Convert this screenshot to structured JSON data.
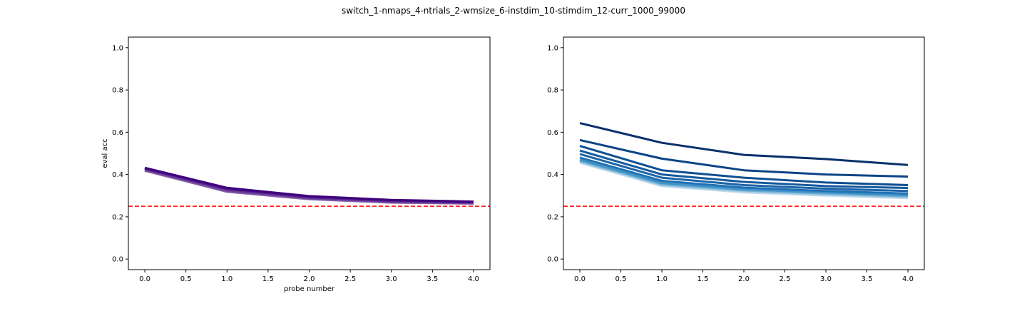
{
  "figure": {
    "suptitle": "switch_1-nmaps_4-ntrials_2-wmsize_6-instdim_10-stimdim_12-curr_1000_99000"
  },
  "chart_data": [
    {
      "type": "line",
      "xlabel": "probe number",
      "ylabel": "eval acc",
      "xlim": [
        -0.2,
        4.2
      ],
      "ylim": [
        -0.05,
        1.05
      ],
      "xticks": [
        0.0,
        0.5,
        1.0,
        1.5,
        2.0,
        2.5,
        3.0,
        3.5,
        4.0
      ],
      "xtick_labels": [
        "0.0",
        "0.5",
        "1.0",
        "1.5",
        "2.0",
        "2.5",
        "3.0",
        "3.5",
        "4.0"
      ],
      "yticks": [
        0.0,
        0.2,
        0.4,
        0.6,
        0.8,
        1.0
      ],
      "ytick_labels": [
        "0.0",
        "0.2",
        "0.4",
        "0.6",
        "0.8",
        "1.0"
      ],
      "grid": false,
      "chance_line": {
        "y": 0.25,
        "color": "#ff0000",
        "style": "dashed"
      },
      "x": [
        0,
        1,
        2,
        3,
        4
      ],
      "series": [
        {
          "values": [
            0.418,
            0.318,
            0.283,
            0.267,
            0.262
          ],
          "color": "#8c6bb1"
        },
        {
          "values": [
            0.421,
            0.322,
            0.286,
            0.27,
            0.264
          ],
          "color": "#7b4ea3"
        },
        {
          "values": [
            0.424,
            0.326,
            0.289,
            0.272,
            0.266
          ],
          "color": "#6a3d9a"
        },
        {
          "values": [
            0.427,
            0.33,
            0.292,
            0.275,
            0.268
          ],
          "color": "#5b2a8f"
        },
        {
          "values": [
            0.43,
            0.334,
            0.295,
            0.278,
            0.27
          ],
          "color": "#4a1486"
        },
        {
          "values": [
            0.432,
            0.337,
            0.298,
            0.28,
            0.272
          ],
          "color": "#3f007d"
        }
      ]
    },
    {
      "type": "line",
      "xlabel": "",
      "ylabel": "",
      "xlim": [
        -0.2,
        4.2
      ],
      "ylim": [
        -0.05,
        1.05
      ],
      "xticks": [
        0.0,
        0.5,
        1.0,
        1.5,
        2.0,
        2.5,
        3.0,
        3.5,
        4.0
      ],
      "xtick_labels": [
        "0.0",
        "0.5",
        "1.0",
        "1.5",
        "2.0",
        "2.5",
        "3.0",
        "3.5",
        "4.0"
      ],
      "yticks": [
        0.0,
        0.2,
        0.4,
        0.6,
        0.8,
        1.0
      ],
      "ytick_labels": [
        "0.0",
        "0.2",
        "0.4",
        "0.6",
        "0.8",
        "1.0"
      ],
      "grid": false,
      "chance_line": {
        "y": 0.25,
        "color": "#ff0000",
        "style": "dashed"
      },
      "x": [
        0,
        1,
        2,
        3,
        4
      ],
      "series": [
        {
          "values": [
            0.455,
            0.345,
            0.315,
            0.3,
            0.288
          ],
          "color": "#c6dbef"
        },
        {
          "values": [
            0.46,
            0.35,
            0.32,
            0.305,
            0.292
          ],
          "color": "#9ecae1"
        },
        {
          "values": [
            0.465,
            0.355,
            0.325,
            0.31,
            0.297
          ],
          "color": "#6baed6"
        },
        {
          "values": [
            0.47,
            0.36,
            0.33,
            0.315,
            0.302
          ],
          "color": "#4292c6"
        },
        {
          "values": [
            0.48,
            0.37,
            0.338,
            0.322,
            0.31
          ],
          "color": "#2171b5"
        },
        {
          "values": [
            0.497,
            0.385,
            0.35,
            0.333,
            0.322
          ],
          "color": "#1b64a8"
        },
        {
          "values": [
            0.513,
            0.4,
            0.365,
            0.345,
            0.336
          ],
          "color": "#155a9d"
        },
        {
          "values": [
            0.535,
            0.42,
            0.385,
            0.362,
            0.35
          ],
          "color": "#0f4f91"
        },
        {
          "values": [
            0.563,
            0.475,
            0.42,
            0.4,
            0.39
          ],
          "color": "#0b4585"
        },
        {
          "values": [
            0.643,
            0.55,
            0.493,
            0.473,
            0.445
          ],
          "color": "#08306b"
        }
      ]
    }
  ]
}
